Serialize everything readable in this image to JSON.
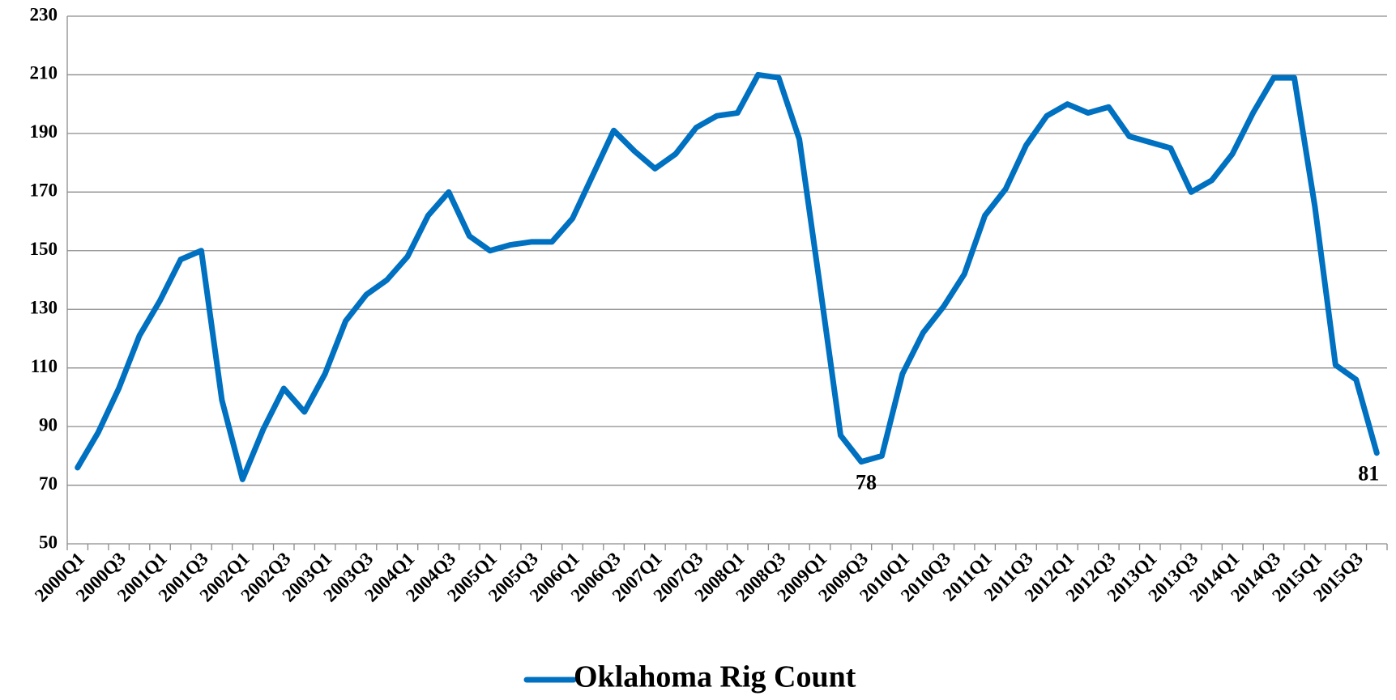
{
  "chart_data": {
    "type": "line",
    "categories": [
      "2000Q1",
      null,
      "2000Q3",
      null,
      "2001Q1",
      null,
      "2001Q3",
      null,
      "2002Q1",
      null,
      "2002Q3",
      null,
      "2003Q1",
      null,
      "2003Q3",
      null,
      "2004Q1",
      null,
      "2004Q3",
      null,
      "2005Q1",
      null,
      "2005Q3",
      null,
      "2006Q1",
      null,
      "2006Q3",
      null,
      "2007Q1",
      null,
      "2007Q3",
      null,
      "2008Q1",
      null,
      "2008Q3",
      null,
      "2009Q1",
      null,
      "2009Q3",
      null,
      "2010Q1",
      null,
      "2010Q3",
      null,
      "2011Q1",
      null,
      "2011Q3",
      null,
      "2012Q1",
      null,
      "2012Q3",
      null,
      "2013Q1",
      null,
      "2013Q3",
      null,
      "2014Q1",
      null,
      "2014Q3",
      null,
      "2015Q1",
      null,
      "2015Q3",
      null
    ],
    "series": [
      {
        "name": "Oklahoma Rig Count",
        "color": "#0070c0",
        "values": [
          76,
          88,
          103,
          121,
          133,
          147,
          150,
          99,
          72,
          89,
          103,
          95,
          108,
          126,
          135,
          140,
          148,
          162,
          170,
          155,
          150,
          152,
          153,
          153,
          161,
          176,
          191,
          184,
          178,
          183,
          192,
          196,
          197,
          210,
          209,
          188,
          138,
          87,
          78,
          80,
          108,
          122,
          131,
          142,
          162,
          171,
          186,
          196,
          200,
          197,
          199,
          189,
          187,
          185,
          170,
          174,
          183,
          197,
          209,
          209,
          165,
          111,
          106,
          81
        ],
        "value_labels": [
          null,
          null,
          null,
          null,
          null,
          null,
          null,
          null,
          null,
          null,
          null,
          null,
          null,
          null,
          null,
          null,
          null,
          null,
          null,
          null,
          null,
          null,
          null,
          null,
          null,
          null,
          null,
          null,
          null,
          null,
          null,
          null,
          null,
          null,
          null,
          null,
          null,
          null,
          78,
          null,
          null,
          null,
          null,
          null,
          null,
          null,
          null,
          null,
          null,
          null,
          null,
          null,
          null,
          null,
          null,
          null,
          null,
          null,
          null,
          null,
          null,
          null,
          null,
          81
        ]
      }
    ],
    "ylim": [
      50,
      230
    ],
    "yticks": [
      50,
      70,
      90,
      110,
      130,
      150,
      170,
      190,
      210,
      230
    ],
    "grid": true,
    "legend": "bottom"
  }
}
